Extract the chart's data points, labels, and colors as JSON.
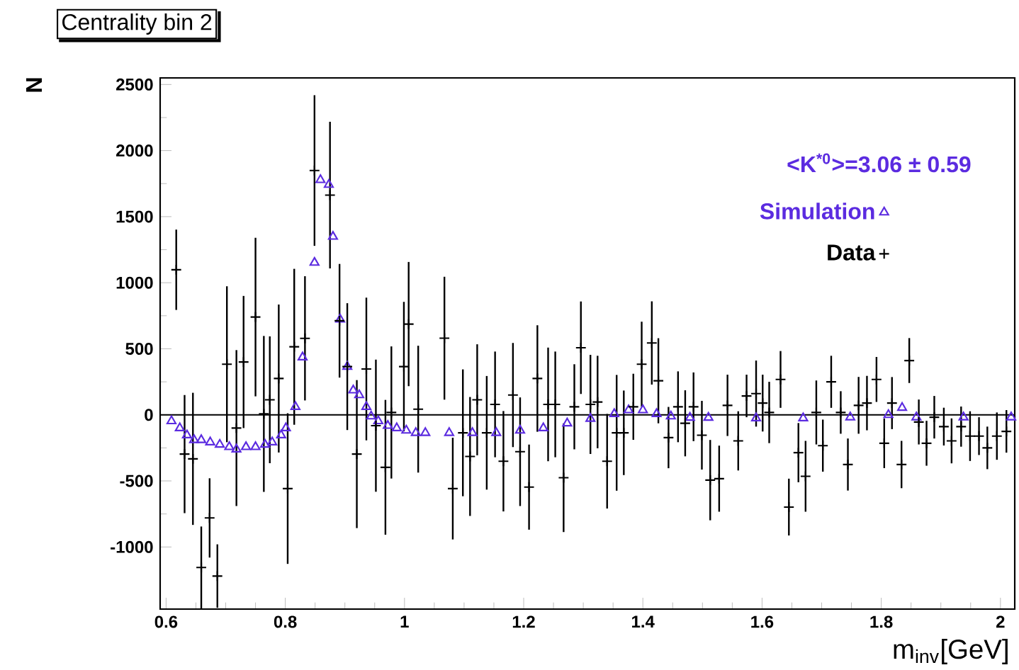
{
  "chart_data": {
    "type": "scatter",
    "title": "Centrality bin 2",
    "xlabel": "m$_{inv}$[GeV]",
    "ylabel": "N",
    "annotations": [
      "<K$^{*0}$>=3.06 ± 0.59"
    ],
    "xlim": [
      0.59,
      2.024
    ],
    "ylim": [
      -1470,
      2550
    ],
    "xticks": [
      0.6,
      0.8,
      1,
      1.2,
      1.4,
      1.6,
      1.8,
      2
    ],
    "yticks": [
      -1000,
      -500,
      0,
      500,
      1000,
      1500,
      2000,
      2500
    ],
    "legend": "top right",
    "ref_lines": [
      {
        "axis": "y",
        "value": 0,
        "color": "#000000"
      }
    ],
    "series": [
      {
        "name": "Simulation",
        "marker": "triangle",
        "color": "#5b2be0",
        "x": [
          0.609,
          0.623,
          0.635,
          0.647,
          0.659,
          0.674,
          0.69,
          0.706,
          0.718,
          0.734,
          0.75,
          0.766,
          0.778,
          0.793,
          0.801,
          0.817,
          0.829,
          0.849,
          0.859,
          0.873,
          0.88,
          0.892,
          0.904,
          0.914,
          0.924,
          0.936,
          0.944,
          0.956,
          0.972,
          0.987,
          1.003,
          1.019,
          1.035,
          1.075,
          1.114,
          1.154,
          1.194,
          1.233,
          1.273,
          1.312,
          1.352,
          1.376,
          1.4,
          1.423,
          1.447,
          1.479,
          1.51,
          1.59,
          1.669,
          1.748,
          1.812,
          1.835,
          1.859,
          1.938,
          2.018
        ],
        "values": [
          -47,
          -100,
          -154,
          -190,
          -190,
          -207,
          -225,
          -243,
          -261,
          -243,
          -243,
          -225,
          -207,
          -154,
          -100,
          61,
          436,
          1152,
          1778,
          1742,
          1349,
          723,
          365,
          186,
          150,
          61,
          -11,
          -47,
          -82,
          -100,
          -118,
          -136,
          -136,
          -136,
          -136,
          -136,
          -118,
          -100,
          -64,
          -29,
          7,
          36,
          36,
          7,
          -11,
          -21,
          -21,
          -25,
          -25,
          -18,
          0,
          54,
          -18,
          -18,
          -18
        ]
      },
      {
        "name": "Data",
        "marker": "cross",
        "color": "#000000",
        "x": [
          0.617,
          0.631,
          0.645,
          0.659,
          0.673,
          0.686,
          0.702,
          0.718,
          0.73,
          0.75,
          0.764,
          0.774,
          0.789,
          0.804,
          0.815,
          0.833,
          0.849,
          0.875,
          0.891,
          0.904,
          0.92,
          0.936,
          0.952,
          0.968,
          0.978,
          0.999,
          1.007,
          1.023,
          1.067,
          1.081,
          1.098,
          1.11,
          1.122,
          1.138,
          1.152,
          1.166,
          1.182,
          1.194,
          1.209,
          1.223,
          1.241,
          1.253,
          1.267,
          1.285,
          1.296,
          1.312,
          1.324,
          1.34,
          1.356,
          1.368,
          1.384,
          1.398,
          1.415,
          1.426,
          1.443,
          1.459,
          1.471,
          1.485,
          1.499,
          1.513,
          1.528,
          1.542,
          1.56,
          1.574,
          1.59,
          1.601,
          1.612,
          1.631,
          1.645,
          1.661,
          1.673,
          1.691,
          1.702,
          1.716,
          1.732,
          1.744,
          1.762,
          1.776,
          1.792,
          1.805,
          1.818,
          1.834,
          1.847,
          1.863,
          1.876,
          1.889,
          1.905,
          1.918,
          1.934,
          1.949,
          1.964,
          1.978,
          1.994,
          2.01
        ],
        "values": [
          1098,
          -297,
          -333,
          -1155,
          -780,
          -1220,
          383,
          -100,
          400,
          740,
          7,
          114,
          275,
          -558,
          515,
          579,
          1849,
          1663,
          712,
          365,
          -297,
          347,
          -82,
          -397,
          18,
          365,
          687,
          43,
          580,
          -558,
          -136,
          -315,
          114,
          -136,
          79,
          -351,
          150,
          -279,
          -547,
          275,
          79,
          79,
          -476,
          61,
          508,
          79,
          97,
          -351,
          -136,
          -136,
          61,
          383,
          544,
          258,
          -172,
          61,
          -64,
          61,
          -154,
          -494,
          -483,
          72,
          -197,
          143,
          161,
          89,
          18,
          268,
          -698,
          -286,
          -465,
          18,
          -233,
          250,
          18,
          -376,
          72,
          89,
          268,
          -215,
          89,
          -376,
          411,
          -54,
          -215,
          -18,
          -89,
          -197,
          -89,
          -161,
          -161,
          -250,
          -161,
          -125
        ],
        "errors": [
          304,
          447,
          500,
          310,
          300,
          240,
          590,
          590,
          500,
          600,
          590,
          480,
          560,
          570,
          590,
          470,
          570,
          555,
          430,
          480,
          560,
          540,
          500,
          510,
          500,
          490,
          470,
          480,
          465,
          385,
          480,
          450,
          420,
          430,
          400,
          380,
          394,
          411,
          322,
          403,
          430,
          400,
          411,
          322,
          350,
          375,
          350,
          358,
          438,
          320,
          250,
          322,
          315,
          322,
          232,
          268,
          250,
          260,
          260,
          304,
          250,
          232,
          224,
          161,
          250,
          215,
          232,
          215,
          215,
          224,
          268,
          242,
          197,
          197,
          161,
          197,
          215,
          206,
          170,
          188,
          197,
          179,
          170,
          170,
          170,
          161,
          143,
          170,
          152,
          188,
          143,
          161,
          179,
          161
        ]
      }
    ]
  }
}
